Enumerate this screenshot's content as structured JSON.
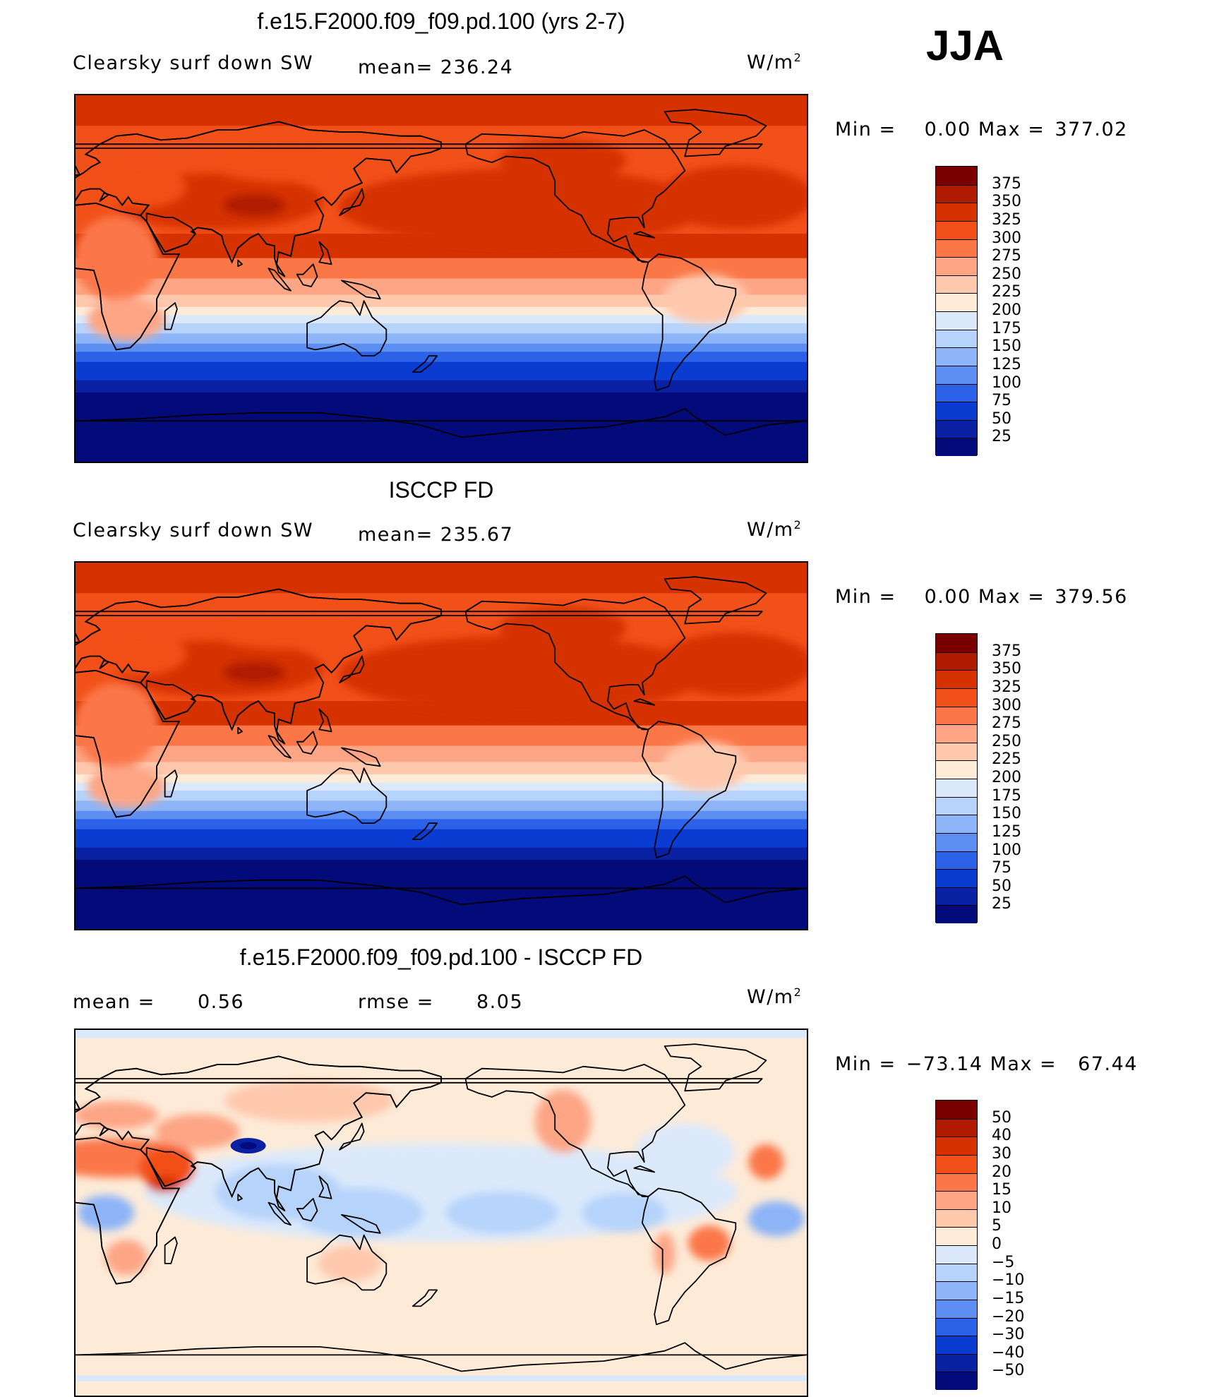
{
  "season": "JJA",
  "panels": [
    {
      "title": "f.e15.F2000.f09_f09.pd.100 (yrs 2-7)",
      "left_label": "Clearsky surf down SW",
      "stat_label": "mean=",
      "stat_value": "236.24",
      "units_main": "W/m",
      "units_exp": "2",
      "min_label": "Min  =",
      "min_value": "0.00",
      "max_label": "Max  =",
      "max_value": "377.02"
    },
    {
      "title": "ISCCP FD",
      "left_label": "Clearsky surf down SW",
      "stat_label": "mean=",
      "stat_value": "235.67",
      "units_main": "W/m",
      "units_exp": "2",
      "min_label": "Min  =",
      "min_value": "0.00",
      "max_label": "Max  =",
      "max_value": "379.56"
    },
    {
      "title": "f.e15.F2000.f09_f09.pd.100 - ISCCP FD",
      "left_label": "mean  =",
      "left_value": "0.56",
      "stat_label": "rmse  =",
      "stat_value": "8.05",
      "units_main": "W/m",
      "units_exp": "2",
      "min_label": "Min  =",
      "min_value": "−73.14",
      "max_label": "Max  =",
      "max_value": "67.44"
    }
  ],
  "chart_data": [
    {
      "type": "heatmap",
      "title": "f.e15.F2000.f09_f09.pd.100 (yrs 2-7)",
      "variable": "Clearsky surf down SW",
      "units": "W/m2",
      "mean": 236.24,
      "min": 0.0,
      "max": 377.02,
      "levels": [
        375,
        350,
        325,
        300,
        275,
        250,
        225,
        200,
        175,
        150,
        125,
        100,
        75,
        50,
        25
      ],
      "colors": [
        "#7a0000",
        "#b01a00",
        "#d63200",
        "#f25019",
        "#fb7748",
        "#fda585",
        "#fec8ad",
        "#fdebd8",
        "#dbe9fb",
        "#b6d3fb",
        "#8cb4f7",
        "#5d8ef2",
        "#2c62e8",
        "#0a3cd2",
        "#0b21a3",
        "#030a7a"
      ]
    },
    {
      "type": "heatmap",
      "title": "ISCCP FD",
      "variable": "Clearsky surf down SW",
      "units": "W/m2",
      "mean": 235.67,
      "min": 0.0,
      "max": 379.56,
      "levels": [
        375,
        350,
        325,
        300,
        275,
        250,
        225,
        200,
        175,
        150,
        125,
        100,
        75,
        50,
        25
      ],
      "colors": [
        "#7a0000",
        "#b01a00",
        "#d63200",
        "#f25019",
        "#fb7748",
        "#fda585",
        "#fec8ad",
        "#fdebd8",
        "#dbe9fb",
        "#b6d3fb",
        "#8cb4f7",
        "#5d8ef2",
        "#2c62e8",
        "#0a3cd2",
        "#0b21a3",
        "#030a7a"
      ]
    },
    {
      "type": "heatmap",
      "title": "f.e15.F2000.f09_f09.pd.100 - ISCCP FD",
      "units": "W/m2",
      "mean": 0.56,
      "rmse": 8.05,
      "min": -73.14,
      "max": 67.44,
      "levels": [
        50,
        40,
        30,
        20,
        15,
        10,
        5,
        0,
        -5,
        -10,
        -15,
        -20,
        -30,
        -40,
        -50
      ],
      "level_labels": [
        "50",
        "40",
        "30",
        "20",
        "15",
        "10",
        "5",
        "0",
        "−5",
        "−10",
        "−15",
        "−20",
        "−30",
        "−40",
        "−50"
      ],
      "colors": [
        "#7a0000",
        "#b01a00",
        "#d63200",
        "#f25019",
        "#fb7748",
        "#fda585",
        "#fec8ad",
        "#fdebd8",
        "#dbe9fb",
        "#b6d3fb",
        "#8cb4f7",
        "#5d8ef2",
        "#2c62e8",
        "#0a3cd2",
        "#0b21a3",
        "#030a7a"
      ]
    }
  ]
}
